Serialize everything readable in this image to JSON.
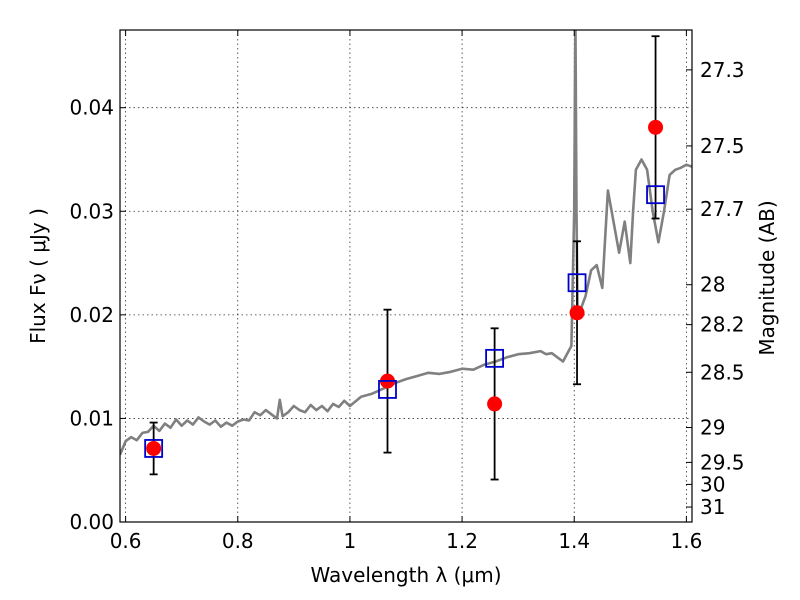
{
  "chart_data": {
    "type": "scatter",
    "title": "",
    "xlabel": "Wavelength  λ (μm)",
    "ylabel": "Flux  Fν  ( μJy )",
    "y2label": "Magnitude (AB)",
    "xlim": [
      0.59,
      1.61
    ],
    "ylim": [
      0.0,
      0.0475
    ],
    "grid": true,
    "x_ticks": [
      0.6,
      0.8,
      1.0,
      1.2,
      1.4,
      1.6
    ],
    "x_tick_labels": [
      "0.6",
      "0.8",
      "1",
      "1.2",
      "1.4",
      "1.6"
    ],
    "y_ticks": [
      0.0,
      0.01,
      0.02,
      0.03,
      0.04
    ],
    "y_tick_labels": [
      "0.00",
      "0.01",
      "0.02",
      "0.03",
      "0.04"
    ],
    "y2_ticks": [
      27.3,
      27.5,
      27.7,
      28,
      28.2,
      28.5,
      29,
      29.5,
      30,
      31
    ],
    "y2_tick_labels": [
      "27.3",
      "27.5",
      "27.7",
      "28",
      "28.2",
      "28.5",
      "29",
      "29.5",
      "30",
      "31"
    ],
    "series": [
      {
        "name": "",
        "kind": "line",
        "color": "#808080",
        "x": [
          0.59,
          0.6,
          0.61,
          0.62,
          0.63,
          0.64,
          0.65,
          0.66,
          0.67,
          0.68,
          0.69,
          0.7,
          0.71,
          0.72,
          0.73,
          0.74,
          0.75,
          0.76,
          0.77,
          0.78,
          0.79,
          0.8,
          0.81,
          0.82,
          0.83,
          0.84,
          0.85,
          0.86,
          0.87,
          0.875,
          0.88,
          0.89,
          0.9,
          0.91,
          0.92,
          0.93,
          0.94,
          0.95,
          0.96,
          0.97,
          0.98,
          0.99,
          1.0,
          1.02,
          1.04,
          1.06,
          1.08,
          1.1,
          1.12,
          1.14,
          1.16,
          1.18,
          1.2,
          1.22,
          1.24,
          1.26,
          1.28,
          1.3,
          1.32,
          1.34,
          1.35,
          1.36,
          1.38,
          1.395,
          1.4,
          1.402,
          1.404,
          1.406,
          1.41,
          1.42,
          1.43,
          1.44,
          1.45,
          1.46,
          1.47,
          1.48,
          1.49,
          1.5,
          1.505,
          1.51,
          1.52,
          1.53,
          1.54,
          1.55,
          1.56,
          1.57,
          1.58,
          1.59,
          1.6,
          1.61
        ],
        "y": [
          0.0065,
          0.0078,
          0.0082,
          0.0079,
          0.0086,
          0.0087,
          0.0093,
          0.0088,
          0.0095,
          0.0091,
          0.0099,
          0.0093,
          0.0098,
          0.0094,
          0.0101,
          0.0097,
          0.0094,
          0.0098,
          0.0092,
          0.0096,
          0.0093,
          0.0097,
          0.0099,
          0.0098,
          0.0106,
          0.0103,
          0.0108,
          0.0104,
          0.01,
          0.0118,
          0.0102,
          0.0106,
          0.0112,
          0.0108,
          0.0106,
          0.0113,
          0.0108,
          0.0112,
          0.0107,
          0.0114,
          0.0111,
          0.0117,
          0.0112,
          0.0121,
          0.0124,
          0.0129,
          0.0134,
          0.0138,
          0.0141,
          0.0144,
          0.0143,
          0.0145,
          0.0148,
          0.0147,
          0.0152,
          0.0155,
          0.0159,
          0.0162,
          0.0163,
          0.0165,
          0.0162,
          0.0163,
          0.0155,
          0.017,
          0.03,
          0.049,
          0.03,
          0.0196,
          0.0203,
          0.0218,
          0.0243,
          0.0248,
          0.0226,
          0.032,
          0.029,
          0.026,
          0.029,
          0.025,
          0.03,
          0.034,
          0.035,
          0.034,
          0.03,
          0.027,
          0.03,
          0.0335,
          0.034,
          0.0342,
          0.0345,
          0.0343
        ]
      },
      {
        "name": "",
        "kind": "points",
        "color": "#ff0000",
        "x": [
          0.65,
          1.067,
          1.258,
          1.405,
          1.545
        ],
        "y": [
          0.0071,
          0.0136,
          0.0114,
          0.0202,
          0.0381
        ],
        "err": [
          0.0025,
          0.0069,
          0.0073,
          0.0069,
          0.0088
        ]
      },
      {
        "name": "",
        "kind": "squares",
        "color": "#0000cc",
        "x": [
          0.65,
          1.067,
          1.258,
          1.405,
          1.545
        ],
        "y": [
          0.0071,
          0.0128,
          0.0158,
          0.0231,
          0.0316
        ]
      }
    ]
  }
}
